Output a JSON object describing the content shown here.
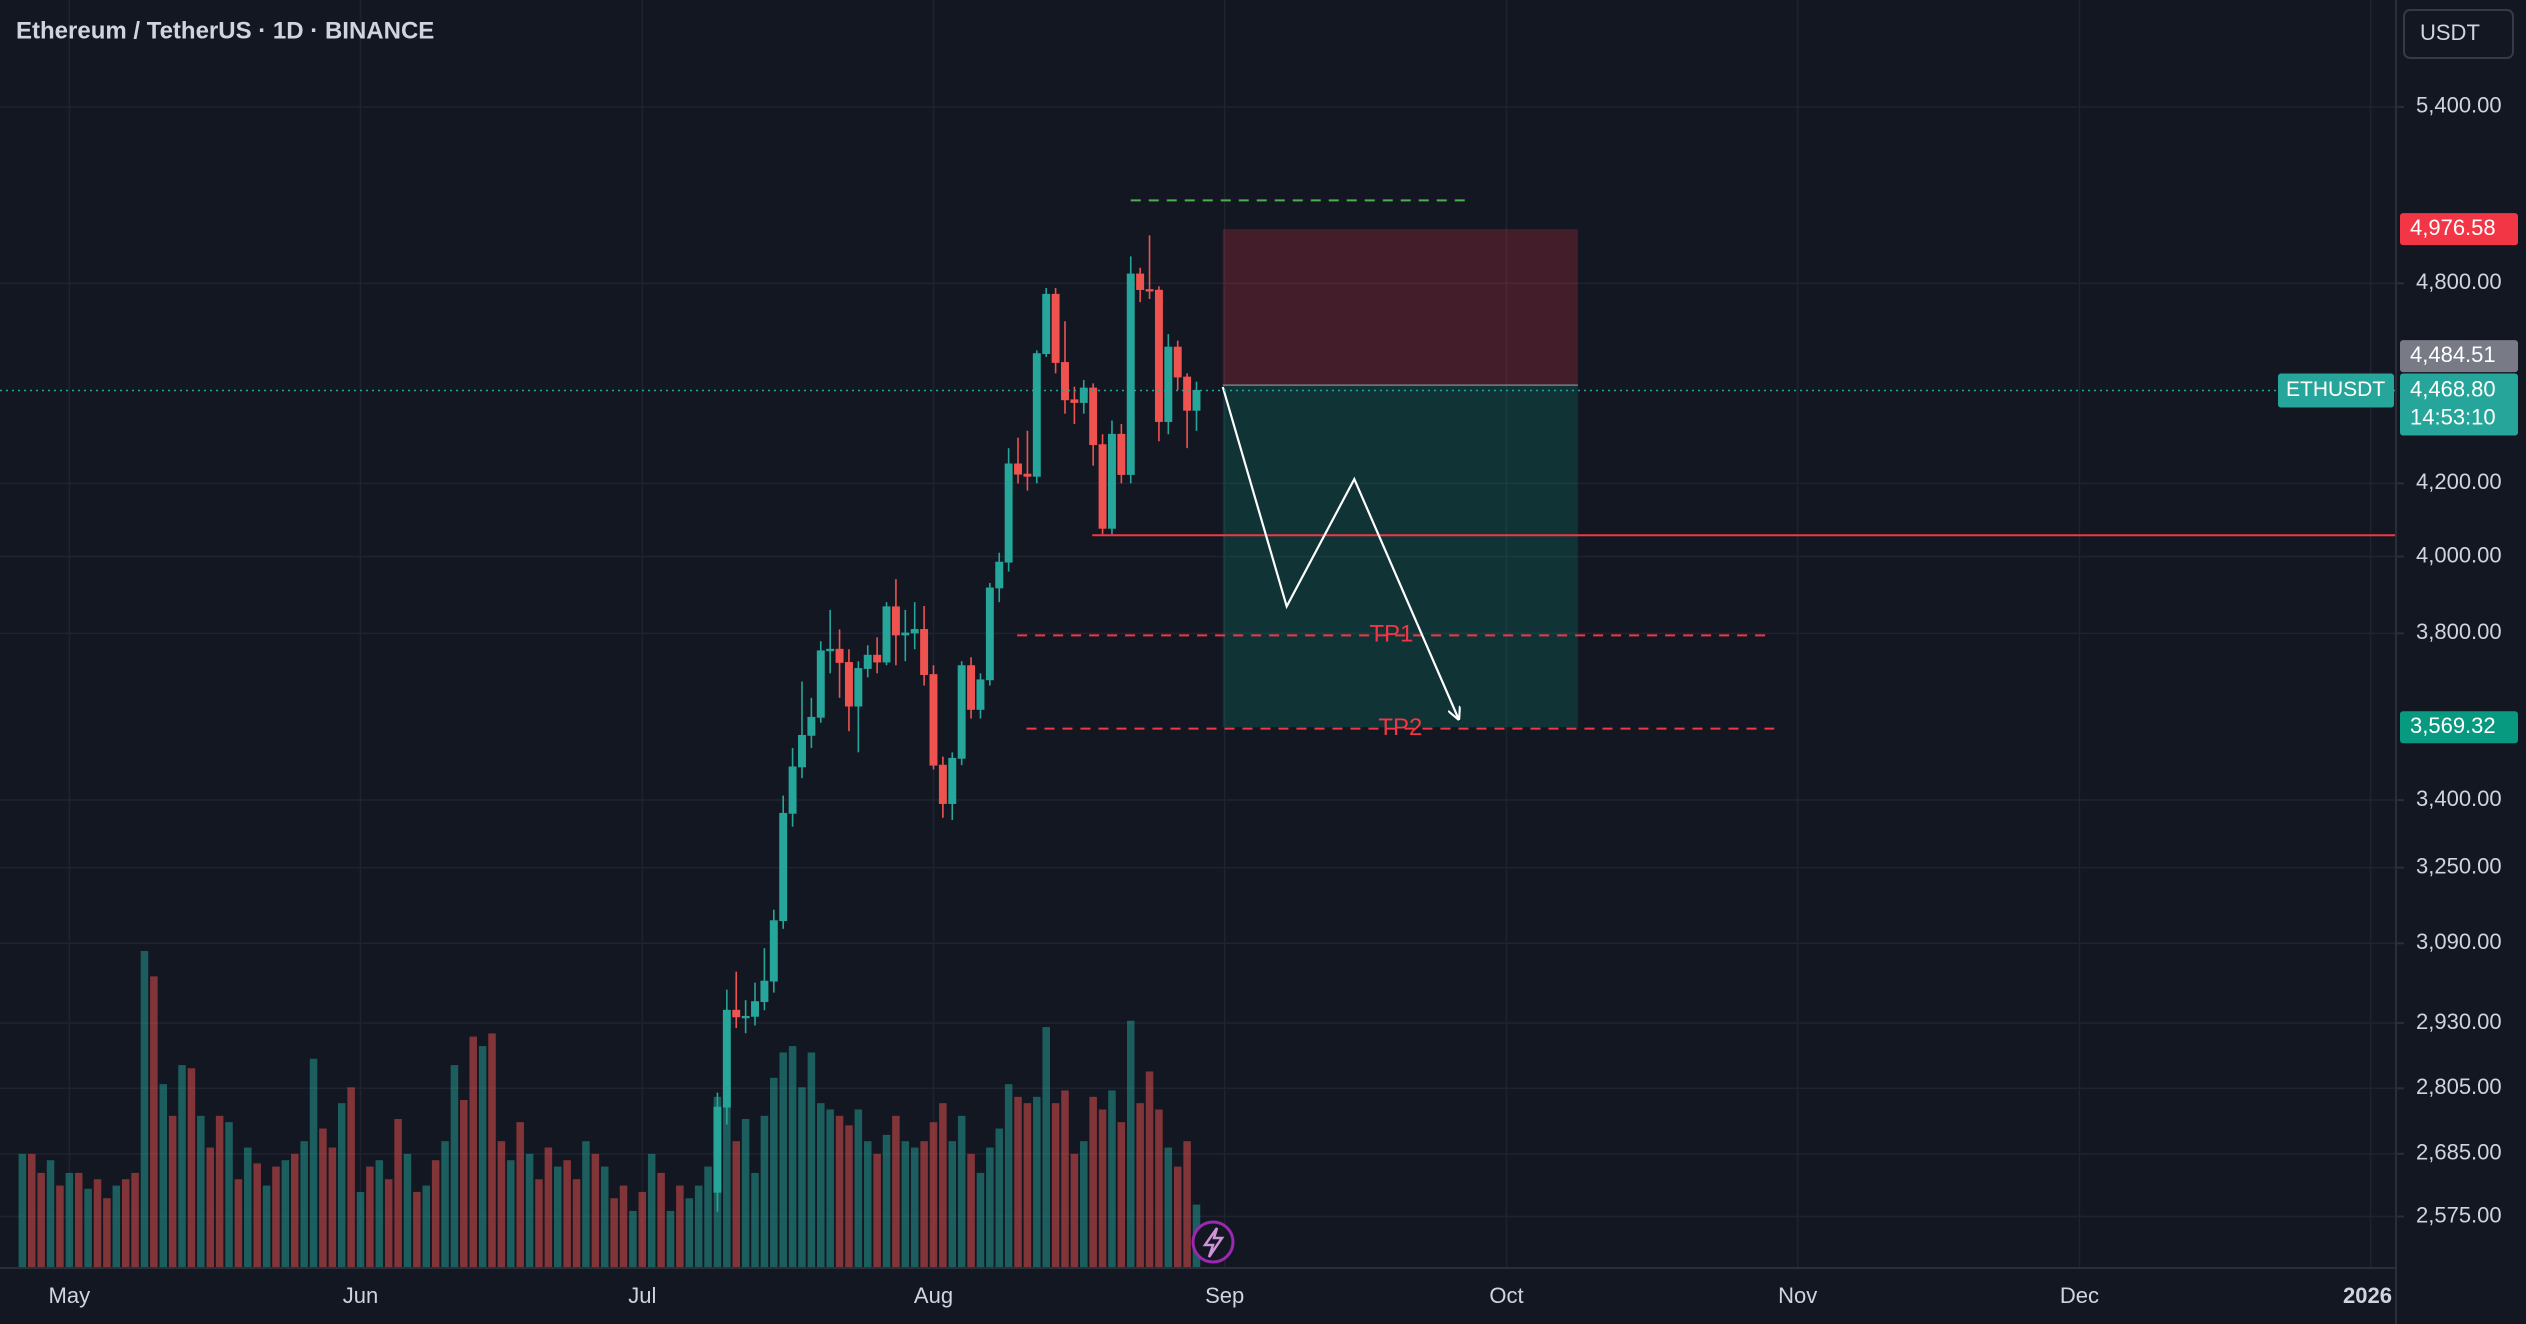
{
  "chart_data": {
    "type": "candlestick",
    "title": "Ethereum / TetherUS · 1D · BINANCE",
    "currency": "USDT",
    "log_scale": true,
    "grid": true,
    "up_color": "#26a69a",
    "down_color": "#ef5350",
    "xlim": [
      -2.38,
      252.7
    ],
    "xticks": [
      {
        "value": 5,
        "label": "May"
      },
      {
        "value": 36,
        "label": "Jun"
      },
      {
        "value": 66,
        "label": "Jul"
      },
      {
        "value": 97,
        "label": "Aug"
      },
      {
        "value": 128,
        "label": "Sep"
      },
      {
        "value": 158,
        "label": "Oct"
      },
      {
        "value": 189,
        "label": "Nov"
      },
      {
        "value": 219,
        "label": "Dec"
      },
      {
        "value": 250,
        "label": "2026"
      }
    ],
    "ylim": [
      2488,
      5799
    ],
    "yticks": [
      {
        "value": 5400,
        "label": "5,400.00"
      },
      {
        "value": 4800,
        "label": "4,800.00"
      },
      {
        "value": 4200,
        "label": "4,200.00"
      },
      {
        "value": 4000,
        "label": "4,000.00"
      },
      {
        "value": 3800,
        "label": "3,800.00"
      },
      {
        "value": 3400,
        "label": "3,400.00"
      },
      {
        "value": 3250,
        "label": "3,250.00"
      },
      {
        "value": 3090,
        "label": "3,090.00"
      },
      {
        "value": 2930,
        "label": "2,930.00"
      },
      {
        "value": 2805,
        "label": "2,805.00"
      },
      {
        "value": 2685,
        "label": "2,685.00"
      },
      {
        "value": 2575,
        "label": "2,575.00"
      }
    ],
    "open": [
      null,
      null,
      null,
      null,
      null,
      null,
      null,
      null,
      null,
      null,
      null,
      null,
      null,
      null,
      null,
      null,
      null,
      null,
      null,
      null,
      null,
      null,
      null,
      null,
      null,
      null,
      null,
      null,
      null,
      null,
      null,
      null,
      null,
      null,
      null,
      null,
      null,
      null,
      null,
      null,
      null,
      null,
      null,
      null,
      null,
      null,
      null,
      null,
      null,
      null,
      null,
      null,
      null,
      null,
      null,
      null,
      null,
      null,
      null,
      null,
      null,
      null,
      null,
      null,
      null,
      null,
      null,
      null,
      null,
      null,
      null,
      null,
      null,
      null,
      2617,
      2770,
      2955,
      2942,
      2943,
      2972,
      3013,
      3137,
      3370,
      3476,
      3550,
      3593,
      3756,
      3760,
      3727,
      3620,
      3712,
      3745,
      3728,
      3868,
      3796,
      3801,
      3810,
      3697,
      3480,
      3392,
      3496,
      3719,
      3612,
      3684,
      3917,
      3985,
      4255,
      4226,
      4220,
      4580,
      4765,
      4553,
      4441,
      4433,
      4476,
      4310,
      4076,
      4340,
      4225,
      4830,
      4780,
      4778,
      4377,
      4600,
      4509,
      4410
    ],
    "high": [
      null,
      null,
      null,
      null,
      null,
      null,
      null,
      null,
      null,
      null,
      null,
      null,
      null,
      null,
      null,
      null,
      null,
      null,
      null,
      null,
      null,
      null,
      null,
      null,
      null,
      null,
      null,
      null,
      null,
      null,
      null,
      null,
      null,
      null,
      null,
      null,
      null,
      null,
      null,
      null,
      null,
      null,
      null,
      null,
      null,
      null,
      null,
      null,
      null,
      null,
      null,
      null,
      null,
      null,
      null,
      null,
      null,
      null,
      null,
      null,
      null,
      null,
      null,
      null,
      null,
      null,
      null,
      null,
      null,
      null,
      null,
      null,
      null,
      null,
      2797,
      2996,
      3032,
      2975,
      3010,
      3080,
      3160,
      3410,
      3520,
      3680,
      3640,
      3780,
      3860,
      3810,
      3760,
      3730,
      3770,
      3790,
      3880,
      3940,
      3860,
      3880,
      3870,
      3720,
      3500,
      3510,
      3730,
      3740,
      3700,
      3930,
      4010,
      4300,
      4330,
      4350,
      4590,
      4785,
      4785,
      4680,
      4480,
      4500,
      4490,
      4340,
      4380,
      4370,
      4887,
      4850,
      4956,
      4790,
      4640,
      4620,
      4520,
      4495
    ],
    "low": [
      null,
      null,
      null,
      null,
      null,
      null,
      null,
      null,
      null,
      null,
      null,
      null,
      null,
      null,
      null,
      null,
      null,
      null,
      null,
      null,
      null,
      null,
      null,
      null,
      null,
      null,
      null,
      null,
      null,
      null,
      null,
      null,
      null,
      null,
      null,
      null,
      null,
      null,
      null,
      null,
      null,
      null,
      null,
      null,
      null,
      null,
      null,
      null,
      null,
      null,
      null,
      null,
      null,
      null,
      null,
      null,
      null,
      null,
      null,
      null,
      null,
      null,
      null,
      null,
      null,
      null,
      null,
      null,
      null,
      null,
      null,
      null,
      null,
      null,
      2583,
      2738,
      2920,
      2910,
      2925,
      2955,
      2990,
      3120,
      3340,
      3450,
      3520,
      3580,
      3700,
      3640,
      3560,
      3510,
      3690,
      3700,
      3720,
      3720,
      3730,
      3760,
      3670,
      3470,
      3360,
      3355,
      3480,
      3590,
      3590,
      3670,
      3880,
      3960,
      4200,
      4180,
      4200,
      4570,
      4520,
      4400,
      4370,
      4400,
      4250,
      4060,
      4060,
      4200,
      4200,
      4740,
      4750,
      4320,
      4340,
      4470,
      4300,
      4350
    ],
    "close": [
      null,
      null,
      null,
      null,
      null,
      null,
      null,
      null,
      null,
      null,
      null,
      null,
      null,
      null,
      null,
      null,
      null,
      null,
      null,
      null,
      null,
      null,
      null,
      null,
      null,
      null,
      null,
      null,
      null,
      null,
      null,
      null,
      null,
      null,
      null,
      null,
      null,
      null,
      null,
      null,
      null,
      null,
      null,
      null,
      null,
      null,
      null,
      null,
      null,
      null,
      null,
      null,
      null,
      null,
      null,
      null,
      null,
      null,
      null,
      null,
      null,
      null,
      null,
      null,
      null,
      null,
      null,
      null,
      null,
      null,
      null,
      null,
      null,
      null,
      2770,
      2955,
      2942,
      2943,
      2972,
      3013,
      3137,
      3370,
      3476,
      3550,
      3593,
      3756,
      3760,
      3727,
      3620,
      3712,
      3745,
      3728,
      3868,
      3796,
      3801,
      3810,
      3697,
      3480,
      3392,
      3496,
      3719,
      3612,
      3684,
      3917,
      3985,
      4255,
      4226,
      4220,
      4580,
      4765,
      4553,
      4441,
      4433,
      4476,
      4310,
      4076,
      4340,
      4225,
      4830,
      4780,
      4778,
      4377,
      4600,
      4509,
      4410,
      4468.8
    ],
    "volume": {
      "values": [
        36,
        36,
        30,
        34,
        26,
        30,
        30,
        25,
        28,
        22,
        26,
        28,
        30,
        100,
        92,
        58,
        48,
        64,
        63,
        48,
        38,
        48,
        46,
        28,
        38,
        33,
        26,
        32,
        34,
        36,
        40,
        66,
        44,
        38,
        52,
        57,
        24,
        32,
        34,
        28,
        47,
        36,
        24,
        26,
        34,
        40,
        64,
        53,
        73,
        70,
        74,
        40,
        34,
        46,
        36,
        28,
        38,
        32,
        34,
        28,
        40,
        36,
        32,
        22,
        26,
        18,
        24,
        36,
        30,
        18,
        26,
        22,
        26,
        32,
        54,
        57,
        40,
        47,
        30,
        48,
        60,
        68,
        70,
        57,
        68,
        52,
        50,
        48,
        45,
        50,
        40,
        36,
        42,
        48,
        40,
        38,
        40,
        46,
        52,
        40,
        48,
        36,
        30,
        38,
        44,
        58,
        54,
        52,
        54,
        76,
        52,
        56,
        36,
        40,
        54,
        50,
        56,
        46,
        78,
        52,
        62,
        50,
        38,
        32,
        40,
        20
      ],
      "colors": [
        "#26a69a",
        "#ef5350",
        "#ef5350",
        "#26a69a",
        "#ef5350",
        "#26a69a",
        "#ef5350",
        "#26a69a",
        "#ef5350",
        "#ef5350",
        "#26a69a",
        "#ef5350",
        "#ef5350",
        "#26a69a",
        "#ef5350",
        "#26a69a",
        "#ef5350",
        "#26a69a",
        "#ef5350",
        "#26a69a",
        "#ef5350",
        "#ef5350",
        "#26a69a",
        "#ef5350",
        "#26a69a",
        "#ef5350",
        "#26a69a",
        "#ef5350",
        "#26a69a",
        "#ef5350",
        "#26a69a",
        "#26a69a",
        "#ef5350",
        "#ef5350",
        "#26a69a",
        "#ef5350",
        "#26a69a",
        "#ef5350",
        "#26a69a",
        "#ef5350",
        "#ef5350",
        "#26a69a",
        "#ef5350",
        "#26a69a",
        "#ef5350",
        "#26a69a",
        "#26a69a",
        "#ef5350",
        "#ef5350",
        "#26a69a",
        "#ef5350",
        "#ef5350",
        "#26a69a",
        "#ef5350",
        "#26a69a",
        "#ef5350",
        "#ef5350",
        "#26a69a",
        "#ef5350",
        "#ef5350",
        "#26a69a",
        "#ef5350",
        "#26a69a",
        "#ef5350",
        "#ef5350",
        "#26a69a",
        "#ef5350",
        "#26a69a",
        "#ef5350",
        "#26a69a",
        "#ef5350",
        "#26a69a",
        "#26a69a",
        "#26a69a",
        "#26a69a",
        "#26a69a",
        "#ef5350",
        "#26a69a",
        "#26a69a",
        "#26a69a",
        "#26a69a",
        "#26a69a",
        "#26a69a",
        "#26a69a",
        "#26a69a",
        "#26a69a",
        "#26a69a",
        "#ef5350",
        "#ef5350",
        "#26a69a",
        "#26a69a",
        "#ef5350",
        "#26a69a",
        "#ef5350",
        "#26a69a",
        "#26a69a",
        "#ef5350",
        "#ef5350",
        "#ef5350",
        "#26a69a",
        "#26a69a",
        "#ef5350",
        "#26a69a",
        "#26a69a",
        "#26a69a",
        "#26a69a",
        "#ef5350",
        "#ef5350",
        "#26a69a",
        "#26a69a",
        "#ef5350",
        "#ef5350",
        "#ef5350",
        "#26a69a",
        "#ef5350",
        "#ef5350",
        "#26a69a",
        "#ef5350",
        "#26a69a",
        "#ef5350",
        "#ef5350",
        "#ef5350",
        "#26a69a",
        "#ef5350",
        "#ef5350",
        "#26a69a"
      ]
    },
    "last_price": {
      "symbol": "ETHUSDT",
      "value": 4468.8,
      "label": "4,468.80",
      "countdown": "14:53:10",
      "color": "#26a69a"
    },
    "position": {
      "x": [
        127.8,
        165.6
      ],
      "stop": {
        "value": 4976.58,
        "label": "4,976.58",
        "color": "#f23645"
      },
      "entry": {
        "value": 4484.51,
        "label": "4,484.51",
        "color": "#787b86"
      },
      "target": {
        "value": 3569.32,
        "label": "3,569.32",
        "color": "#089981"
      }
    },
    "levels": [
      {
        "value": 4057,
        "x": [
          113.9,
          252.7
        ],
        "color": "#f23645",
        "style": "solid"
      },
      {
        "value": 5073,
        "x": [
          118,
          154
        ],
        "color": "#4caf50",
        "style": "dashed"
      },
      {
        "name": "TP1",
        "value": 3795,
        "x": [
          105.9,
          185.6
        ],
        "color": "#f23645",
        "style": "dashed"
      },
      {
        "name": "TP2",
        "value": 3566,
        "x": [
          106.9,
          186.5
        ],
        "color": "#f23645",
        "style": "dashed"
      }
    ],
    "path": {
      "x": [
        127.8,
        134.6,
        141.8,
        152.9
      ],
      "values": [
        4479,
        3869,
        4212,
        3589
      ],
      "color": "#ffffff"
    }
  }
}
